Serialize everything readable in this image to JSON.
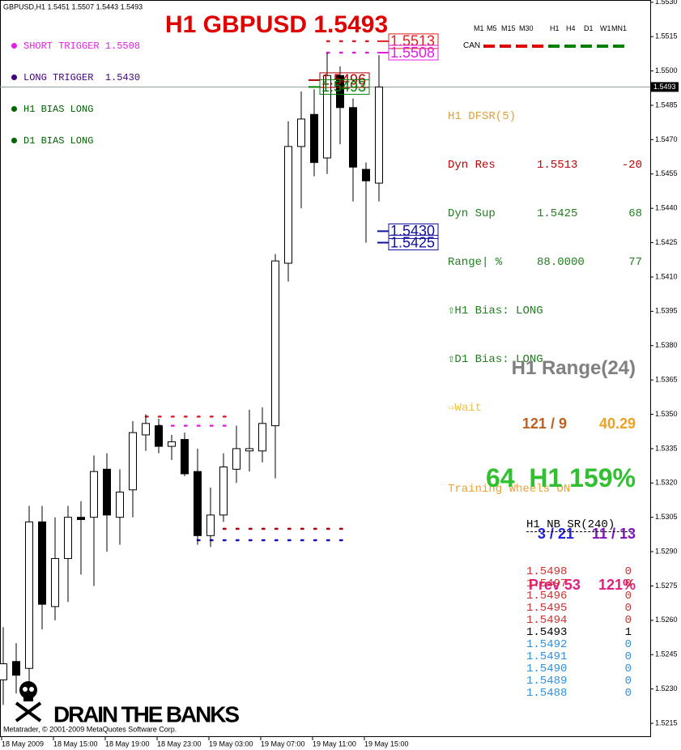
{
  "chart_data": {
    "type": "candlestick",
    "title": "H1 GBPUSD 1.5493",
    "subtitle": "GBPUSD,H1  1.5451 1.5507 1.5443 1.5493",
    "categories": [
      "18 May 2009",
      null,
      null,
      null,
      "18 May 15:00",
      null,
      null,
      null,
      "18 May 19:00",
      null,
      null,
      null,
      "18 May 23:00",
      null,
      null,
      null,
      "19 May 03:00",
      null,
      null,
      null,
      "19 May 07:00",
      null,
      null,
      null,
      "19 May 11:00",
      null,
      null,
      null,
      "19 May 15:00",
      null
    ],
    "open": [
      1.5234,
      1.5242,
      1.5239,
      1.5303,
      1.5266,
      1.5287,
      1.5305,
      1.5305,
      1.5326,
      1.5305,
      1.5317,
      1.5341,
      1.5345,
      1.5336,
      1.5339,
      1.5325,
      1.5297,
      1.5306,
      1.5326,
      1.5334,
      1.5334,
      1.5345,
      1.5416,
      1.5467,
      1.5481,
      1.5462,
      1.5498,
      1.5484,
      1.5457,
      1.5451
    ],
    "high": [
      1.5257,
      1.525,
      1.531,
      1.531,
      1.5305,
      1.531,
      1.5312,
      1.5332,
      1.5333,
      1.5326,
      1.5347,
      1.535,
      1.5348,
      1.5341,
      1.5342,
      1.5335,
      1.5318,
      1.5333,
      1.5345,
      1.5352,
      1.5353,
      1.542,
      1.5478,
      1.5491,
      1.5492,
      1.5508,
      1.5502,
      1.5488,
      1.546,
      1.5507
    ],
    "low": [
      1.5223,
      1.5228,
      1.523,
      1.5256,
      1.526,
      1.5268,
      1.528,
      1.5275,
      1.529,
      1.5293,
      1.5305,
      1.5334,
      1.5333,
      1.533,
      1.5323,
      1.5293,
      1.5292,
      1.5303,
      1.532,
      1.5325,
      1.5329,
      1.5322,
      1.5408,
      1.544,
      1.5454,
      1.5455,
      1.5468,
      1.5443,
      1.5425,
      1.5443
    ],
    "close": [
      1.5241,
      1.5236,
      1.5303,
      1.5267,
      1.5287,
      1.5305,
      1.5304,
      1.5325,
      1.5306,
      1.5316,
      1.5342,
      1.5346,
      1.5336,
      1.5338,
      1.5324,
      1.5297,
      1.5306,
      1.5327,
      1.5335,
      1.5335,
      1.5346,
      1.5417,
      1.5467,
      1.5479,
      1.546,
      1.5498,
      1.5484,
      1.5458,
      1.5452,
      1.5493
    ],
    "up_color": "#ffffff",
    "down_color": "#000000",
    "ylim": [
      1.5209,
      1.5531
    ],
    "yticks": [
      {
        "value": 1.553,
        "label": "1.5530"
      },
      1.5515,
      {
        "value": 1.55,
        "label": "1.5500"
      },
      1.5485,
      {
        "value": 1.547,
        "label": "1.5470"
      },
      1.5455,
      {
        "value": 1.544,
        "label": "1.5440"
      },
      1.5425,
      {
        "value": 1.541,
        "label": "1.5410"
      },
      1.5395,
      {
        "value": 1.538,
        "label": "1.5380"
      },
      1.5365,
      {
        "value": 1.535,
        "label": "1.5350"
      },
      1.5335,
      {
        "value": 1.532,
        "label": "1.5320"
      },
      1.5305,
      {
        "value": 1.529,
        "label": "1.5290"
      },
      1.5275,
      {
        "value": 1.526,
        "label": "1.5260"
      },
      1.5245,
      {
        "value": 1.523,
        "label": "1.5230"
      },
      1.5215
    ],
    "last_price": {
      "value": 1.5493,
      "label": "1.5493"
    },
    "levels": [
      {
        "value": 1.5513,
        "color": "#e02020"
      },
      {
        "value": 1.5508,
        "color": "#e020e0"
      },
      {
        "value": 1.5496,
        "color": "#b00000"
      },
      {
        "value": 1.5493,
        "color": "#008000"
      },
      {
        "value": 1.543,
        "label": "1.5430",
        "color": "#1010a0"
      },
      {
        "value": 1.5425,
        "color": "#1010a0"
      }
    ],
    "dotted_lines": [
      {
        "value": 1.5513,
        "from": 25,
        "to": 29,
        "color": "#e02020"
      },
      {
        "value": 1.5508,
        "from": 25,
        "to": 29,
        "color": "#e020e0"
      },
      {
        "value": 1.5349,
        "from": 11,
        "to": 18,
        "color": "#e02020"
      },
      {
        "value": 1.5345,
        "from": 11,
        "to": 18,
        "color": "#e020e0"
      },
      {
        "value": 1.53,
        "from": 15,
        "to": 27,
        "color": "#b00000"
      },
      {
        "value": 1.5295,
        "from": 15,
        "to": 27,
        "color": "#1010c0"
      }
    ]
  },
  "legend": [
    {
      "text": "SHORT TRIGGER 1.5508",
      "color": "#e020e0"
    },
    {
      "text": "LONG TRIGGER  1.5430",
      "color": "#400080"
    },
    {
      "text": "H1 BIAS LONG",
      "color": "#006400"
    },
    {
      "text": "D1 BIAS LONG",
      "color": "#006400"
    }
  ],
  "timeframes": {
    "labels": [
      "M1",
      "M5",
      "M15",
      "M30",
      "H1",
      "H4",
      "D1",
      "W1",
      "MN1"
    ],
    "row_label": "CAN",
    "colors": [
      "#e00000",
      "#e00000",
      "#e00000",
      "#e00000",
      "#008000",
      "#008000",
      "#008000",
      "#008000",
      "#008000"
    ]
  },
  "dfsr": {
    "title": "H1 DFSR(5)",
    "rows": [
      [
        "Dyn Res",
        "1.5513",
        "-20"
      ],
      [
        "Dyn Sup",
        "1.5425",
        "68"
      ],
      [
        "Range| %",
        "88.0000",
        "77"
      ]
    ],
    "bias": [
      "⇧H1 Bias: LONG",
      "⇧D1 Bias: LONG"
    ],
    "signal": "⇨Wait",
    "note": "Training Wheels ON"
  },
  "range": {
    "title": "H1 Range(24)",
    "ratio": "121 / 9",
    "value": "40.29",
    "main": "64  H1 159%",
    "count_a": "3 / 21",
    "count_b": "11 / 13",
    "prev": "Prev 53",
    "prev_pct": "121%"
  },
  "nb_sr": {
    "title": "H1 NB SR(240)",
    "rows": [
      [
        "1.5498",
        "0"
      ],
      [
        "1.5497",
        "0"
      ],
      [
        "1.5496",
        "0"
      ],
      [
        "1.5495",
        "0"
      ],
      [
        "1.5494",
        "0"
      ],
      [
        "1.5493",
        "1"
      ],
      [
        "1.5492",
        "0"
      ],
      [
        "1.5491",
        "0"
      ],
      [
        "1.5490",
        "0"
      ],
      [
        "1.5489",
        "0"
      ],
      [
        "1.5488",
        "0"
      ]
    ]
  },
  "footer": {
    "logo": "DRAIN THE BANKS",
    "copyright": "Metatrader, © 2001-2009 MetaQuotes Software Corp."
  }
}
